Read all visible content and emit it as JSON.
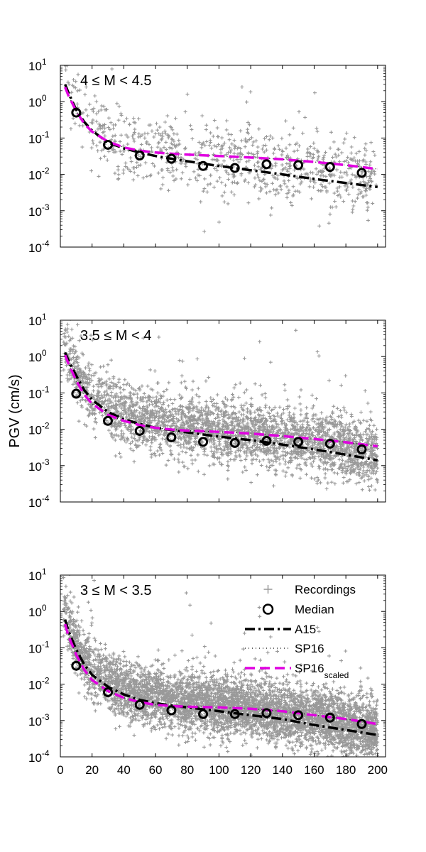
{
  "ylabel": "PGV (cm/s)",
  "x_ticks": [
    0,
    20,
    40,
    60,
    80,
    100,
    120,
    140,
    160,
    180,
    200
  ],
  "y_ticks": [
    {
      "exp": -4,
      "base": "10",
      "sup": "-4"
    },
    {
      "exp": -3,
      "base": "10",
      "sup": "-3"
    },
    {
      "exp": -2,
      "base": "10",
      "sup": "-2"
    },
    {
      "exp": -1,
      "base": "10",
      "sup": "-1"
    },
    {
      "exp": 0,
      "base": "10",
      "sup": "0"
    },
    {
      "exp": 1,
      "base": "10",
      "sup": "1"
    }
  ],
  "colors": {
    "recordings": "#999999",
    "median": "#000000",
    "A15": "#000000",
    "SP16": "#000000",
    "SP16_scaled": "#e000e0"
  },
  "legend": {
    "position": "top-right",
    "items": [
      {
        "label": "Recordings",
        "sub": ""
      },
      {
        "label": "Median",
        "sub": ""
      },
      {
        "label": "A15",
        "sub": ""
      },
      {
        "label": "SP16",
        "sub": ""
      },
      {
        "label": "SP16",
        "sub": "scaled"
      }
    ]
  },
  "chart_data": [
    {
      "type": "scatter",
      "panel_label": "4 ≤ M < 4.5",
      "xlim": [
        0,
        205
      ],
      "ylim": [
        0.0001,
        10
      ],
      "yscale": "log",
      "series": [
        {
          "name": "Median",
          "x": [
            10,
            30,
            50,
            70,
            90,
            110,
            130,
            150,
            170,
            190
          ],
          "y": [
            0.5,
            0.065,
            0.033,
            0.027,
            0.017,
            0.015,
            0.019,
            0.018,
            0.016,
            0.011
          ]
        },
        {
          "name": "A15",
          "x": [
            3,
            5,
            10,
            15,
            20,
            30,
            40,
            50,
            60,
            70,
            80,
            100,
            120,
            140,
            160,
            180,
            200
          ],
          "y": [
            3.0,
            1.8,
            0.6,
            0.28,
            0.16,
            0.075,
            0.052,
            0.04,
            0.032,
            0.027,
            0.023,
            0.017,
            0.013,
            0.01,
            0.0075,
            0.0058,
            0.0045
          ]
        },
        {
          "name": "SP16",
          "x": [
            3,
            5,
            10,
            15,
            20,
            30,
            40,
            50,
            60,
            70,
            80,
            100,
            120,
            140,
            160,
            180,
            200
          ],
          "y": [
            2.5,
            1.5,
            0.55,
            0.25,
            0.15,
            0.08,
            0.055,
            0.045,
            0.04,
            0.037,
            0.035,
            0.032,
            0.029,
            0.026,
            0.022,
            0.018,
            0.014
          ]
        },
        {
          "name": "SP16_scaled",
          "x": [
            3,
            5,
            10,
            15,
            20,
            30,
            40,
            50,
            60,
            70,
            80,
            100,
            120,
            140,
            160,
            180,
            200
          ],
          "y": [
            2.5,
            1.5,
            0.55,
            0.25,
            0.15,
            0.08,
            0.055,
            0.045,
            0.04,
            0.037,
            0.035,
            0.032,
            0.029,
            0.026,
            0.022,
            0.018,
            0.014
          ]
        }
      ],
      "recordings": {
        "count": 850,
        "center_series": "A15",
        "core_spread": 0.5,
        "outlier_frac": 0.06
      }
    },
    {
      "type": "scatter",
      "panel_label": "3.5 ≤ M < 4",
      "xlim": [
        0,
        205
      ],
      "ylim": [
        0.0001,
        10
      ],
      "yscale": "log",
      "series": [
        {
          "name": "Median",
          "x": [
            10,
            30,
            50,
            70,
            90,
            110,
            130,
            150,
            170,
            190
          ],
          "y": [
            0.095,
            0.017,
            0.009,
            0.006,
            0.0045,
            0.0042,
            0.0048,
            0.0045,
            0.004,
            0.0028
          ]
        },
        {
          "name": "A15",
          "x": [
            3,
            5,
            10,
            15,
            20,
            30,
            40,
            50,
            60,
            70,
            80,
            100,
            120,
            140,
            160,
            180,
            200
          ],
          "y": [
            1.3,
            0.8,
            0.3,
            0.12,
            0.065,
            0.03,
            0.019,
            0.014,
            0.011,
            0.0095,
            0.0082,
            0.0063,
            0.005,
            0.0038,
            0.0028,
            0.002,
            0.0014
          ]
        },
        {
          "name": "SP16",
          "x": [
            3,
            5,
            10,
            15,
            20,
            30,
            40,
            50,
            60,
            70,
            80,
            100,
            120,
            140,
            160,
            180,
            200
          ],
          "y": [
            1.1,
            0.65,
            0.22,
            0.09,
            0.05,
            0.025,
            0.017,
            0.013,
            0.011,
            0.0098,
            0.0092,
            0.0085,
            0.0076,
            0.0065,
            0.0054,
            0.0044,
            0.0034
          ]
        },
        {
          "name": "SP16_scaled",
          "x": [
            3,
            5,
            10,
            15,
            20,
            30,
            40,
            50,
            60,
            70,
            80,
            100,
            120,
            140,
            160,
            180,
            200
          ],
          "y": [
            1.1,
            0.65,
            0.22,
            0.09,
            0.05,
            0.025,
            0.017,
            0.013,
            0.011,
            0.0098,
            0.0092,
            0.0085,
            0.0076,
            0.0065,
            0.0054,
            0.0044,
            0.0034
          ]
        }
      ],
      "recordings": {
        "count": 3200,
        "center_series": "A15",
        "core_spread": 0.42,
        "outlier_frac": 0.04
      }
    },
    {
      "type": "scatter",
      "panel_label": "3 ≤ M < 3.5",
      "xlim": [
        0,
        205
      ],
      "ylim": [
        0.0001,
        10
      ],
      "yscale": "log",
      "series": [
        {
          "name": "Median",
          "x": [
            10,
            30,
            50,
            70,
            90,
            110,
            130,
            150,
            170,
            190
          ],
          "y": [
            0.032,
            0.006,
            0.0027,
            0.0019,
            0.0015,
            0.0015,
            0.0016,
            0.0014,
            0.0012,
            0.0008
          ]
        },
        {
          "name": "A15",
          "x": [
            3,
            5,
            10,
            15,
            20,
            30,
            40,
            50,
            60,
            70,
            80,
            100,
            120,
            140,
            160,
            180,
            200
          ],
          "y": [
            0.6,
            0.3,
            0.09,
            0.035,
            0.018,
            0.0085,
            0.0052,
            0.0037,
            0.003,
            0.0026,
            0.0023,
            0.0018,
            0.0014,
            0.0011,
            0.00075,
            0.00055,
            0.0004
          ]
        },
        {
          "name": "SP16",
          "x": [
            3,
            5,
            10,
            15,
            20,
            30,
            40,
            50,
            60,
            70,
            80,
            100,
            120,
            140,
            160,
            180,
            200
          ],
          "y": [
            0.45,
            0.22,
            0.065,
            0.025,
            0.013,
            0.0065,
            0.0042,
            0.0032,
            0.0027,
            0.0025,
            0.0024,
            0.0023,
            0.0021,
            0.0018,
            0.0014,
            0.0011,
            0.0008
          ]
        },
        {
          "name": "SP16_scaled",
          "x": [
            3,
            5,
            10,
            15,
            20,
            30,
            40,
            50,
            60,
            70,
            80,
            100,
            120,
            140,
            160,
            180,
            200
          ],
          "y": [
            0.45,
            0.22,
            0.065,
            0.025,
            0.013,
            0.0065,
            0.0042,
            0.0032,
            0.0027,
            0.0025,
            0.0024,
            0.0023,
            0.0021,
            0.0018,
            0.0014,
            0.0011,
            0.0008
          ]
        }
      ],
      "recordings": {
        "count": 6500,
        "center_series": "A15",
        "core_spread": 0.4,
        "outlier_frac": 0.03
      }
    }
  ]
}
